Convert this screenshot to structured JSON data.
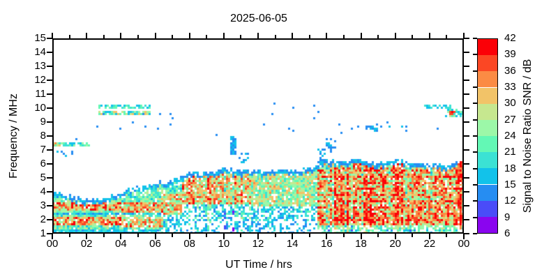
{
  "title": "2025-06-05",
  "chart_data": {
    "type": "heatmap",
    "title": "2025-06-05",
    "xlabel": "UT Time / hrs",
    "ylabel": "Frequency / MHz",
    "x_range": [
      0,
      24
    ],
    "y_range": [
      1,
      15
    ],
    "x_axis": {
      "major_hours": [
        0,
        2,
        4,
        6,
        8,
        10,
        12,
        14,
        16,
        18,
        20,
        22,
        24
      ],
      "major_labels": [
        "00",
        "02",
        "04",
        "06",
        "08",
        "10",
        "12",
        "14",
        "16",
        "18",
        "20",
        "22",
        "00"
      ],
      "minor_hours": [
        1,
        3,
        5,
        7,
        9,
        11,
        13,
        15,
        17,
        19,
        21,
        23
      ]
    },
    "y_axis": {
      "ticks": [
        1,
        2,
        3,
        4,
        5,
        6,
        7,
        8,
        9,
        10,
        11,
        12,
        13,
        14,
        15
      ]
    },
    "colorbar": {
      "label": "Signal to Noise Ratio SNR / dB",
      "min": 6,
      "max": 42,
      "ticks": [
        6,
        9,
        12,
        15,
        18,
        21,
        24,
        27,
        30,
        33,
        36,
        39,
        42
      ],
      "colors": [
        "#8a05ef",
        "#4a4cf8",
        "#268df2",
        "#12c2ea",
        "#3be2d4",
        "#63f8b5",
        "#9cf8a8",
        "#c6e78f",
        "#f2c368",
        "#fb8b44",
        "#fb4724",
        "#fb0007"
      ]
    },
    "grid": {
      "nt": 197,
      "nf": 94
    },
    "seed": 20250605,
    "band_envelope_by_hour": [
      3.9,
      3.7,
      3.45,
      3.5,
      3.9,
      4.35,
      4.65,
      4.85,
      5.3,
      5.4,
      5.6,
      5.5,
      5.5,
      5.6,
      5.5,
      5.7,
      6.25,
      6.1,
      6.35,
      6.0,
      6.3,
      6.05,
      6.0,
      5.95,
      6.2
    ],
    "fringe": {
      "width": 0.32,
      "density": 0.9,
      "snr": [
        12,
        18
      ]
    },
    "regions": [
      {
        "t": [
          0,
          4
        ],
        "streak": 0,
        "zones": [
          {
            "f": [
              1.0,
              1.3
            ],
            "density": 0.95,
            "snr": [
              14,
              21
            ]
          },
          {
            "f": [
              2.3,
              2.52
            ],
            "density": 0.9,
            "snr": [
              13,
              20
            ]
          },
          {
            "f": [
              1.55,
              2.2
            ],
            "density": 0.97,
            "snr": [
              24,
              42
            ]
          },
          {
            "f": [
              2.6,
              3.2
            ],
            "density": 0.97,
            "snr": [
              24,
              42
            ]
          },
          {
            "f": [
              1.0,
              99
            ],
            "density": 0.95,
            "snr": [
              17,
              30
            ]
          }
        ]
      },
      {
        "t": [
          4,
          6.5
        ],
        "streak": 1,
        "zones": [
          {
            "f": [
              1.0,
              1.3
            ],
            "density": 0.85,
            "snr": [
              14,
              21
            ]
          },
          {
            "f": [
              2.3,
              2.5
            ],
            "density": 0.85,
            "snr": [
              14,
              21
            ]
          },
          {
            "f": [
              1.5,
              2.2
            ],
            "density": 0.9,
            "snr": [
              21,
              38
            ]
          },
          {
            "f": [
              2.5,
              3.3
            ],
            "density": 0.95,
            "snr": [
              22,
              40
            ]
          },
          {
            "f": [
              1.0,
              99
            ],
            "density": 0.9,
            "snr": [
              16,
              29
            ]
          }
        ]
      },
      {
        "t": [
          6.5,
          7.5
        ],
        "streak": 1,
        "zones": [
          {
            "f": [
              1.0,
              2.3
            ],
            "density": 0.55,
            "snr": [
              13,
              22
            ]
          },
          {
            "f": [
              2.4,
              3.8
            ],
            "density": 0.9,
            "snr": [
              21,
              38
            ]
          },
          {
            "f": [
              1.0,
              99
            ],
            "density": 0.9,
            "snr": [
              16,
              28
            ]
          }
        ]
      },
      {
        "t": [
          7.5,
          11.5
        ],
        "streak": 2,
        "zones": [
          {
            "f": [
              1.0,
              2.0
            ],
            "density": 0.4,
            "snr": [
              12,
              19
            ]
          },
          {
            "f": [
              2.0,
              3.1
            ],
            "density": 0.55,
            "snr": [
              13,
              23
            ]
          },
          {
            "f": [
              1.0,
              99
            ],
            "density": 0.93,
            "snr": [
              22,
              38
            ]
          }
        ]
      },
      {
        "t": [
          11.5,
          15.5
        ],
        "streak": 1,
        "zones": [
          {
            "f": [
              1.0,
              1.9
            ],
            "density": 0.35,
            "snr": [
              12,
              18
            ]
          },
          {
            "f": [
              1.9,
              2.9
            ],
            "density": 0.55,
            "snr": [
              13,
              22
            ]
          },
          {
            "f": [
              1.0,
              99
            ],
            "density": 0.92,
            "snr": [
              19,
              33
            ]
          }
        ]
      },
      {
        "t": [
          15.5,
          24
        ],
        "streak": 2,
        "fstripe": {
          "period": 0.45,
          "thresh": 0.3,
          "boost": 5
        },
        "zones": [
          {
            "f": [
              1.0,
              1.55
            ],
            "density": 0.75,
            "snr": [
              14,
              24
            ]
          },
          {
            "f": [
              1.55,
              2.3
            ],
            "density": 0.95,
            "snr": [
              24,
              42
            ]
          },
          {
            "f": [
              1.0,
              99
            ],
            "density": 0.95,
            "snr": [
              22,
              40
            ]
          }
        ]
      }
    ],
    "features": [
      {
        "t": [
          0.0,
          2.15
        ],
        "f": [
          7.3,
          7.6
        ],
        "density": 0.8,
        "snr": [
          15,
          26
        ]
      },
      {
        "t": [
          0.0,
          0.45
        ],
        "f": [
          7.32,
          7.58
        ],
        "density": 0.85,
        "snr": [
          27,
          36
        ]
      },
      {
        "t": [
          0.25,
          1.15
        ],
        "f": [
          6.5,
          7.15
        ],
        "density": 0.12,
        "snr": [
          12,
          16
        ]
      },
      {
        "t": [
          2.8,
          5.65
        ],
        "f": [
          9.9,
          10.18
        ],
        "density": 0.72,
        "snr": [
          15,
          24
        ]
      },
      {
        "t": [
          2.8,
          5.65
        ],
        "f": [
          9.45,
          9.78
        ],
        "density": 0.72,
        "snr": [
          15,
          33
        ]
      },
      {
        "t": [
          2.4,
          7.1
        ],
        "f": [
          8.4,
          9.75
        ],
        "density": 0.035,
        "snr": [
          12,
          16
        ]
      },
      {
        "t": [
          10.38,
          10.65
        ],
        "f": [
          6.6,
          7.95
        ],
        "density": 0.8,
        "snr": [
          12,
          17
        ]
      },
      {
        "t": [
          10.95,
          11.4
        ],
        "f": [
          6.05,
          6.75
        ],
        "density": 0.3,
        "snr": [
          12,
          16
        ]
      },
      {
        "t": [
          15.5,
          15.85
        ],
        "f": [
          6.1,
          7.1
        ],
        "density": 0.5,
        "snr": [
          12,
          18
        ]
      },
      {
        "t": [
          16.0,
          16.45
        ],
        "f": [
          6.85,
          7.9
        ],
        "density": 0.3,
        "snr": [
          12,
          16
        ]
      },
      {
        "t": [
          12.4,
          15.5
        ],
        "f": [
          8.3,
          10.4
        ],
        "density": 0.02,
        "snr": [
          12,
          15
        ]
      },
      {
        "t": [
          16.5,
          21.2
        ],
        "f": [
          8.1,
          9.1
        ],
        "density": 0.04,
        "snr": [
          12,
          16
        ]
      },
      {
        "t": [
          18.3,
          19.35
        ],
        "f": [
          8.25,
          8.85
        ],
        "density": 0.3,
        "snr": [
          12,
          18
        ]
      },
      {
        "t": [
          21.8,
          23.25
        ],
        "f": [
          9.95,
          10.22
        ],
        "density": 0.65,
        "snr": [
          15,
          21
        ]
      },
      {
        "t": [
          23.0,
          24.0
        ],
        "f": [
          9.3,
          9.95
        ],
        "density": 0.45,
        "snr": [
          15,
          30
        ]
      },
      {
        "t": [
          23.25,
          23.5
        ],
        "f": [
          9.5,
          9.72
        ],
        "density": 0.9,
        "snr": [
          36,
          42
        ]
      },
      {
        "t": [
          23.75,
          24.0
        ],
        "f": [
          5.2,
          6.25
        ],
        "density": 0.85,
        "snr": [
          33,
          42
        ]
      },
      {
        "t": [
          23.7,
          24.0
        ],
        "f": [
          9.55,
          9.85
        ],
        "density": 0.7,
        "snr": [
          15,
          21
        ]
      }
    ],
    "dots": [
      {
        "t": 1.45,
        "f": 7.75,
        "snr": 13
      },
      {
        "t": 2.6,
        "f": 8.65,
        "snr": 13
      },
      {
        "t": 4.0,
        "f": 8.5,
        "snr": 13
      },
      {
        "t": 4.7,
        "f": 9.0,
        "snr": 13
      },
      {
        "t": 5.3,
        "f": 9.55,
        "snr": 13
      },
      {
        "t": 6.3,
        "f": 9.6,
        "snr": 13
      },
      {
        "t": 6.85,
        "f": 9.5,
        "snr": 13
      },
      {
        "t": 9.6,
        "f": 8.0,
        "snr": 13
      },
      {
        "t": 13.0,
        "f": 10.35,
        "snr": 13
      },
      {
        "t": 16.55,
        "f": 7.6,
        "snr": 13
      },
      {
        "t": 17.5,
        "f": 8.45,
        "snr": 13
      },
      {
        "t": 19.6,
        "f": 9.0,
        "snr": 13
      },
      {
        "t": 20.6,
        "f": 8.35,
        "snr": 13
      },
      {
        "t": 22.5,
        "f": 8.55,
        "snr": 13
      }
    ]
  }
}
